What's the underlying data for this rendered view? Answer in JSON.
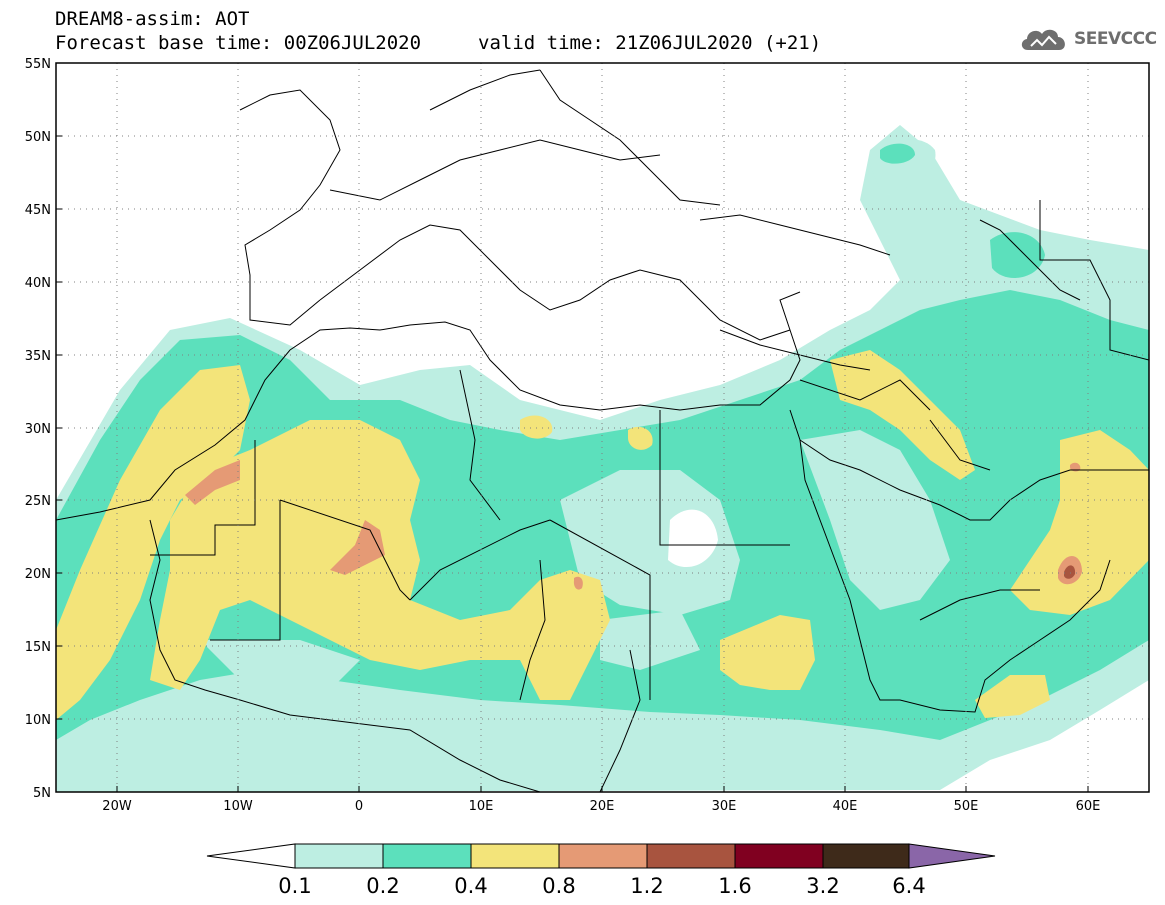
{
  "header": {
    "title_line1": "DREAM8-assim: AOT",
    "title_line2": "Forecast base time: 00Z06JUL2020",
    "valid_time": "valid time: 21Z06JUL2020 (+21)",
    "logo_text": "SEEVCCC"
  },
  "map": {
    "projection": "cylindrical equidistant",
    "lon_range": [
      -25,
      65
    ],
    "lat_range": [
      5,
      55
    ],
    "lat_labels": [
      "55N",
      "50N",
      "45N",
      "40N",
      "35N",
      "30N",
      "25N",
      "20N",
      "15N",
      "10N",
      "5N"
    ],
    "lon_labels": [
      "20W",
      "10W",
      "0",
      "10E",
      "20E",
      "30E",
      "40E",
      "50E",
      "60E"
    ],
    "grid": "dotted"
  },
  "legend": {
    "levels": [
      "0.1",
      "0.2",
      "0.4",
      "0.8",
      "1.2",
      "1.6",
      "3.2",
      "6.4"
    ],
    "colors": [
      "#ffffff",
      "#bdeee2",
      "#5ce0bc",
      "#f3e47a",
      "#e59a75",
      "#a8543f",
      "#800020",
      "#3e2a1a",
      "#8a66a8"
    ]
  },
  "colors": {
    "aot_0_1": "#bdeee2",
    "aot_0_2": "#5ce0bc",
    "aot_0_4": "#f3e47a",
    "aot_0_8": "#e59a75",
    "aot_1_2": "#a8543f"
  }
}
